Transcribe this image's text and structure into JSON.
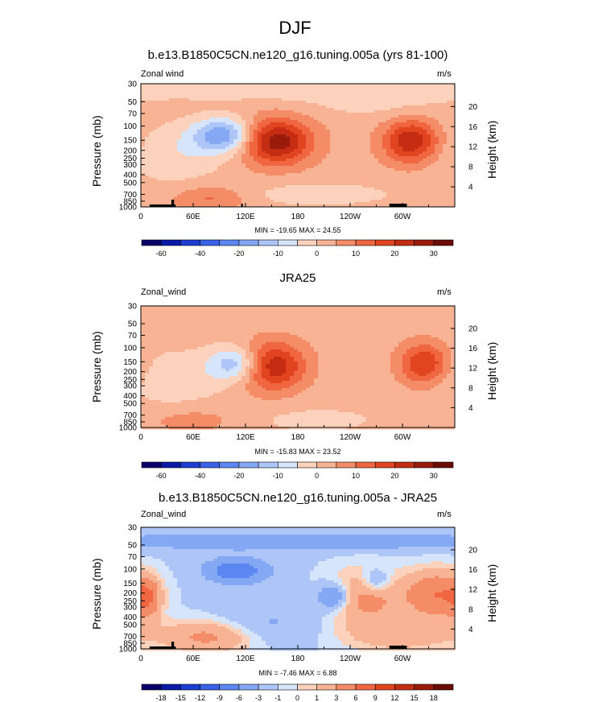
{
  "title": "DJF",
  "colors": {
    "zero": "#fde8dc",
    "neg": [
      "#08006b",
      "#0a1aa8",
      "#1d3fd1",
      "#3a62e8",
      "#5c86f2",
      "#85a8f5",
      "#adc6f7",
      "#d6e5fb"
    ],
    "pos": [
      "#fcd2bd",
      "#f8b394",
      "#f48d67",
      "#ef6640",
      "#e0451f",
      "#c42d12",
      "#9a1b0b",
      "#6b0c05"
    ]
  },
  "chart_data": [
    {
      "type": "contour",
      "title": "b.e13.B1850C5CN.ne120_g16.tuning.005a (yrs 81-100)",
      "left_string": "Zonal wind",
      "right_string": "m/s",
      "ylabel": "Pressure (mb)",
      "ylabel_right": "Height (km)",
      "x_ticks": [
        "0",
        "60E",
        "120E",
        "180",
        "120W",
        "60W"
      ],
      "y_ticks": [
        "30",
        "50",
        "70",
        "100",
        "150",
        "200",
        "250",
        "300",
        "400",
        "500",
        "700",
        "850",
        "1000"
      ],
      "y_right_ticks": [
        "20",
        "16",
        "12",
        "8",
        "4"
      ],
      "min_max": "MIN = -19.65  MAX = 24.55",
      "colorbar_labels": [
        "-60",
        "-40",
        "-20",
        "-10",
        "0",
        "10",
        "20",
        "30"
      ],
      "levels": [
        -70,
        -60,
        -50,
        -40,
        -30,
        -20,
        -15,
        -10,
        -5,
        0,
        5,
        10,
        15,
        20,
        25,
        30,
        35
      ],
      "features": [
        {
          "lon": 155,
          "p": 155,
          "value": 24.55
        },
        {
          "lon": 310,
          "p": 155,
          "value": 21
        },
        {
          "lon": 95,
          "p": 130,
          "value": -19.65
        },
        {
          "lon": 70,
          "p": 760,
          "value": 8
        }
      ]
    },
    {
      "type": "contour",
      "title": "JRA25",
      "left_string": "Zonal_wind",
      "right_string": "m/s",
      "ylabel": "Pressure (mb)",
      "ylabel_right": "Height (km)",
      "x_ticks": [
        "0",
        "60E",
        "120E",
        "180",
        "120W",
        "60W"
      ],
      "y_ticks": [
        "30",
        "50",
        "70",
        "100",
        "150",
        "200",
        "250",
        "300",
        "400",
        "500",
        "700",
        "850",
        "1000"
      ],
      "y_right_ticks": [
        "20",
        "16",
        "12",
        "8",
        "4"
      ],
      "min_max": "MIN = -15.83  MAX = 23.52",
      "colorbar_labels": [
        "-60",
        "-40",
        "-20",
        "-10",
        "0",
        "10",
        "20",
        "30"
      ],
      "levels": [
        -70,
        -60,
        -50,
        -40,
        -30,
        -20,
        -15,
        -10,
        -5,
        0,
        5,
        10,
        15,
        20,
        25,
        30,
        35
      ],
      "features": [
        {
          "lon": 150,
          "p": 170,
          "value": 23.52
        },
        {
          "lon": 325,
          "p": 160,
          "value": 19
        },
        {
          "lon": 110,
          "p": 160,
          "value": -15.83
        }
      ]
    },
    {
      "type": "contour",
      "title": "b.e13.B1850C5CN.ne120_g16.tuning.005a - JRA25",
      "left_string": "Zonal_wind",
      "right_string": "m/s",
      "ylabel": "Pressure (mb)",
      "ylabel_right": "Height (km)",
      "x_ticks": [
        "0",
        "60E",
        "120E",
        "180",
        "120W",
        "60W"
      ],
      "y_ticks": [
        "30",
        "50",
        "70",
        "100",
        "150",
        "200",
        "250",
        "300",
        "400",
        "500",
        "700",
        "850",
        "1000"
      ],
      "y_right_ticks": [
        "20",
        "16",
        "12",
        "8",
        "4"
      ],
      "min_max": "MIN = -7.46  MAX = 6.88",
      "colorbar_labels": [
        "-18",
        "-15",
        "-12",
        "-9",
        "-6",
        "-3",
        "-1",
        "0",
        "1",
        "3",
        "6",
        "9",
        "12",
        "15",
        "18"
      ],
      "levels": [
        -21,
        -18,
        -15,
        -12,
        -9,
        -6,
        -3,
        -1,
        0,
        1,
        3,
        6,
        9,
        12,
        15,
        18,
        21
      ],
      "features": [
        {
          "lon": 110,
          "p": 105,
          "value": -7.46
        },
        {
          "lon": 220,
          "p": 220,
          "value": -6
        },
        {
          "lon": 340,
          "p": 210,
          "value": 6.88
        },
        {
          "lon": 10,
          "p": 230,
          "value": 4
        }
      ]
    }
  ]
}
